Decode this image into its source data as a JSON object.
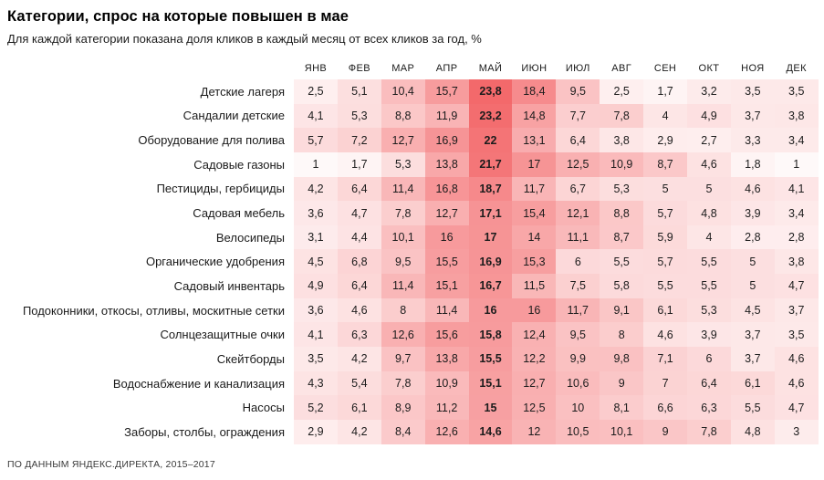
{
  "header": {
    "title": "Категории, спрос на которые повышен в мае",
    "subtitle": "Для каждой категории показана доля кликов в каждый месяц от всех кликов за год, %"
  },
  "footer": {
    "source": "ПО ДАННЫМ ЯНДЕКС.ДИРЕКТА, 2015–2017"
  },
  "chart_data": {
    "type": "heatmap",
    "title": "Категории, спрос на которые повышен в мае",
    "subtitle": "Для каждой категории показана доля кликов в каждый месяц от всех кликов за год, %",
    "unit": "%",
    "columns": [
      "ЯНВ",
      "ФЕВ",
      "МАР",
      "АПР",
      "МАЙ",
      "ИЮН",
      "ИЮЛ",
      "АВГ",
      "СЕН",
      "ОКТ",
      "НОЯ",
      "ДЕК"
    ],
    "peak_column": "МАЙ",
    "peak_column_index": 4,
    "decimal_separator": ",",
    "color_scale": {
      "min_value": 0,
      "max_value": 23.8,
      "min_color": "#FFFFFF",
      "max_color": "#F3696B"
    },
    "rows": [
      {
        "label": "Детские лагеря",
        "values": [
          2.5,
          5.1,
          10.4,
          15.7,
          23.8,
          18.4,
          9.5,
          2.5,
          1.7,
          3.2,
          3.5,
          3.5
        ]
      },
      {
        "label": "Сандалии детские",
        "values": [
          4.1,
          5.3,
          8.8,
          11.9,
          23.2,
          14.8,
          7.7,
          7.8,
          4,
          4.9,
          3.7,
          3.8
        ]
      },
      {
        "label": "Оборудование для полива",
        "values": [
          5.7,
          7.2,
          12.7,
          16.9,
          22,
          13.1,
          6.4,
          3.8,
          2.9,
          2.7,
          3.3,
          3.4
        ]
      },
      {
        "label": "Садовые газоны",
        "values": [
          1,
          1.7,
          5.3,
          13.8,
          21.7,
          17,
          12.5,
          10.9,
          8.7,
          4.6,
          1.8,
          1
        ]
      },
      {
        "label": "Пестициды, гербициды",
        "values": [
          4.2,
          6.4,
          11.4,
          16.8,
          18.7,
          11.7,
          6.7,
          5.3,
          5,
          5,
          4.6,
          4.1
        ]
      },
      {
        "label": "Садовая мебель",
        "values": [
          3.6,
          4.7,
          7.8,
          12.7,
          17.1,
          15.4,
          12.1,
          8.8,
          5.7,
          4.8,
          3.9,
          3.4
        ]
      },
      {
        "label": "Велосипеды",
        "values": [
          3.1,
          4.4,
          10.1,
          16,
          17,
          14,
          11.1,
          8.7,
          5.9,
          4,
          2.8,
          2.8
        ]
      },
      {
        "label": "Органические удобрения",
        "values": [
          4.5,
          6.8,
          9.5,
          15.5,
          16.9,
          15.3,
          6,
          5.5,
          5.7,
          5.5,
          5,
          3.8
        ]
      },
      {
        "label": "Садовый инвентарь",
        "values": [
          4.9,
          6.4,
          11.4,
          15.1,
          16.7,
          11.5,
          7.5,
          5.8,
          5.5,
          5.5,
          5,
          4.7
        ]
      },
      {
        "label": "Подоконники, откосы, отливы, москитные сетки",
        "values": [
          3.6,
          4.6,
          8,
          11.4,
          16,
          16,
          11.7,
          9.1,
          6.1,
          5.3,
          4.5,
          3.7
        ]
      },
      {
        "label": "Солнцезащитные очки",
        "values": [
          4.1,
          6.3,
          12.6,
          15.6,
          15.8,
          12.4,
          9.5,
          8,
          4.6,
          3.9,
          3.7,
          3.5
        ]
      },
      {
        "label": "Скейтборды",
        "values": [
          3.5,
          4.2,
          9.7,
          13.8,
          15.5,
          12.2,
          9.9,
          9.8,
          7.1,
          6,
          3.7,
          4.6
        ]
      },
      {
        "label": "Водоснабжение и канализация",
        "values": [
          4.3,
          5.4,
          7.8,
          10.9,
          15.1,
          12.7,
          10.6,
          9,
          7,
          6.4,
          6.1,
          4.6
        ]
      },
      {
        "label": "Насосы",
        "values": [
          5.2,
          6.1,
          8.9,
          11.2,
          15,
          12.5,
          10,
          8.1,
          6.6,
          6.3,
          5.5,
          4.7
        ]
      },
      {
        "label": "Заборы, столбы, ограждения",
        "values": [
          2.9,
          4.2,
          8.4,
          12.6,
          14.6,
          12,
          10.5,
          10.1,
          9,
          7.8,
          4.8,
          3
        ]
      }
    ]
  }
}
